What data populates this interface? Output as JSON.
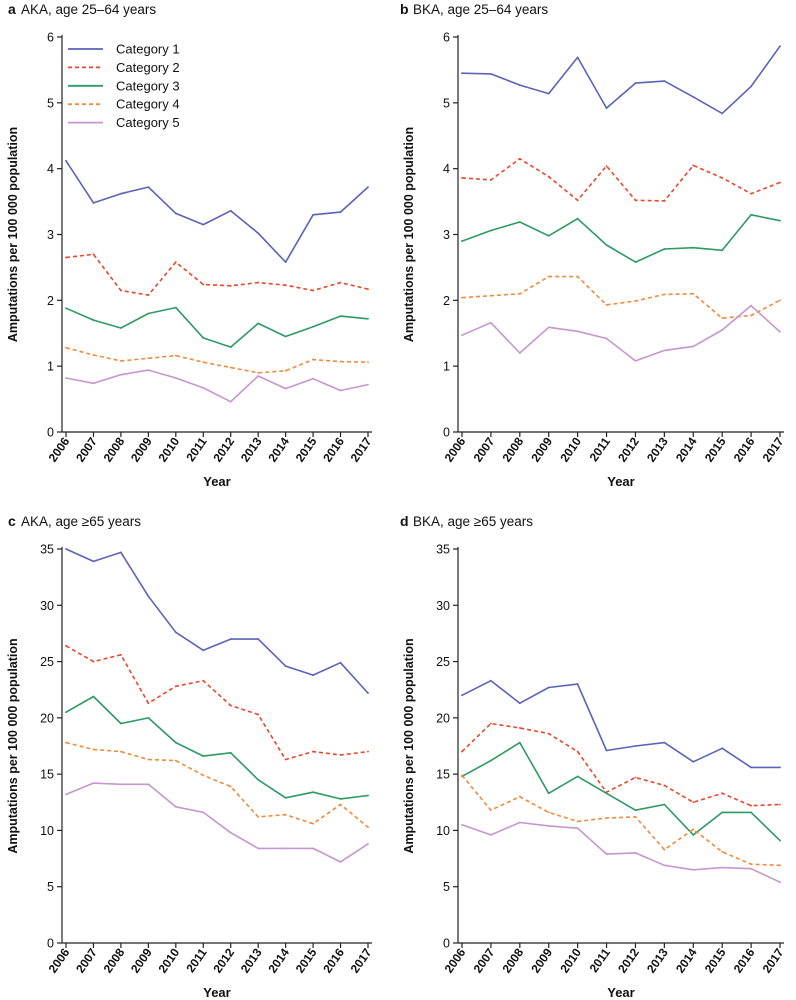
{
  "colors": {
    "cat1": "#5a63b8",
    "cat2": "#e8472b",
    "cat3": "#2e9a63",
    "cat4": "#f08a3e",
    "cat5": "#c795cf"
  },
  "legend": [
    {
      "name": "Category 1",
      "color": "#5a63b8",
      "dashed": false
    },
    {
      "name": "Category 2",
      "color": "#e8472b",
      "dashed": true
    },
    {
      "name": "Category 3",
      "color": "#2e9a63",
      "dashed": false
    },
    {
      "name": "Category 4",
      "color": "#f08a3e",
      "dashed": true
    },
    {
      "name": "Category 5",
      "color": "#c795cf",
      "dashed": false
    }
  ],
  "chart_data": [
    {
      "type": "line",
      "panel_letter": "a",
      "title": "AKA, age 25–64 years",
      "xlabel": "Year",
      "ylabel": "Amputations per 100 000 population",
      "x": [
        "2006",
        "2007",
        "2008",
        "2009",
        "2010",
        "2011",
        "2012",
        "2013",
        "2014",
        "2015",
        "2016",
        "2017"
      ],
      "ylim": [
        0,
        6
      ],
      "yticks": [
        0,
        1,
        2,
        3,
        4,
        5,
        6
      ],
      "grid": false,
      "legend_position": "top-left",
      "series": [
        {
          "name": "Category 1",
          "values": [
            4.12,
            3.48,
            3.62,
            3.72,
            3.32,
            3.15,
            3.36,
            3.02,
            2.58,
            3.3,
            3.34,
            3.72
          ]
        },
        {
          "name": "Category 2",
          "values": [
            2.65,
            2.7,
            2.15,
            2.08,
            2.58,
            2.24,
            2.22,
            2.27,
            2.23,
            2.15,
            2.27,
            2.17
          ]
        },
        {
          "name": "Category 3",
          "values": [
            1.88,
            1.7,
            1.58,
            1.8,
            1.89,
            1.43,
            1.29,
            1.65,
            1.45,
            1.6,
            1.76,
            1.72
          ]
        },
        {
          "name": "Category 4",
          "values": [
            1.28,
            1.17,
            1.08,
            1.12,
            1.16,
            1.06,
            0.98,
            0.9,
            0.93,
            1.1,
            1.07,
            1.06
          ]
        },
        {
          "name": "Category 5",
          "values": [
            0.82,
            0.74,
            0.87,
            0.94,
            0.82,
            0.67,
            0.46,
            0.85,
            0.66,
            0.81,
            0.63,
            0.72
          ]
        }
      ]
    },
    {
      "type": "line",
      "panel_letter": "b",
      "title": "BKA, age 25–64 years",
      "xlabel": "Year",
      "ylabel": "Amputations per 100 000 population",
      "x": [
        "2006",
        "2007",
        "2008",
        "2009",
        "2010",
        "2011",
        "2012",
        "2013",
        "2014",
        "2015",
        "2016",
        "2017"
      ],
      "ylim": [
        0,
        6
      ],
      "yticks": [
        0,
        1,
        2,
        3,
        4,
        5,
        6
      ],
      "grid": false,
      "series": [
        {
          "name": "Category 1",
          "values": [
            5.45,
            5.44,
            5.27,
            5.14,
            5.69,
            4.92,
            5.3,
            5.33,
            5.09,
            4.84,
            5.25,
            5.86
          ]
        },
        {
          "name": "Category 2",
          "values": [
            3.86,
            3.83,
            4.15,
            3.88,
            3.52,
            4.04,
            3.52,
            3.51,
            4.05,
            3.86,
            3.62,
            3.79
          ]
        },
        {
          "name": "Category 3",
          "values": [
            2.9,
            3.06,
            3.19,
            2.98,
            3.24,
            2.84,
            2.58,
            2.78,
            2.8,
            2.76,
            3.3,
            3.21
          ]
        },
        {
          "name": "Category 4",
          "values": [
            2.04,
            2.07,
            2.1,
            2.36,
            2.36,
            1.93,
            1.99,
            2.09,
            2.1,
            1.73,
            1.77,
            2.0
          ]
        },
        {
          "name": "Category 5",
          "values": [
            1.47,
            1.66,
            1.2,
            1.59,
            1.53,
            1.42,
            1.08,
            1.24,
            1.3,
            1.55,
            1.92,
            1.52
          ]
        }
      ]
    },
    {
      "type": "line",
      "panel_letter": "c",
      "title": "AKA, age ≥65 years",
      "xlabel": "Year",
      "ylabel": "Amputations per 100 000 population",
      "x": [
        "2006",
        "2007",
        "2008",
        "2009",
        "2010",
        "2011",
        "2012",
        "2013",
        "2014",
        "2015",
        "2016",
        "2017"
      ],
      "ylim": [
        0,
        35
      ],
      "yticks": [
        0,
        5,
        10,
        15,
        20,
        25,
        30,
        35
      ],
      "grid": false,
      "series": [
        {
          "name": "Category 1",
          "values": [
            35.0,
            33.9,
            34.7,
            30.8,
            27.6,
            26.0,
            27.0,
            27.0,
            24.6,
            23.8,
            24.9,
            22.2
          ]
        },
        {
          "name": "Category 2",
          "values": [
            26.4,
            25.0,
            25.6,
            21.3,
            22.8,
            23.3,
            21.1,
            20.3,
            16.3,
            17.0,
            16.7,
            17.0
          ]
        },
        {
          "name": "Category 3",
          "values": [
            20.5,
            21.9,
            19.5,
            20.0,
            17.8,
            16.6,
            16.9,
            14.5,
            12.9,
            13.4,
            12.8,
            13.1
          ]
        },
        {
          "name": "Category 4",
          "values": [
            17.8,
            17.2,
            17.0,
            16.3,
            16.2,
            14.9,
            13.9,
            11.2,
            11.4,
            10.6,
            12.3,
            10.3
          ]
        },
        {
          "name": "Category 5",
          "values": [
            13.2,
            14.2,
            14.1,
            14.1,
            12.1,
            11.6,
            9.8,
            8.4,
            8.4,
            8.4,
            7.2,
            8.8
          ]
        }
      ]
    },
    {
      "type": "line",
      "panel_letter": "d",
      "title": "BKA, age ≥65 years",
      "xlabel": "Year",
      "ylabel": "Amputations per 100 000 population",
      "x": [
        "2006",
        "2007",
        "2008",
        "2009",
        "2010",
        "2011",
        "2012",
        "2013",
        "2014",
        "2015",
        "2016",
        "2017"
      ],
      "ylim": [
        0,
        35
      ],
      "yticks": [
        0,
        5,
        10,
        15,
        20,
        25,
        30,
        35
      ],
      "grid": false,
      "series": [
        {
          "name": "Category 1",
          "values": [
            22.0,
            23.3,
            21.3,
            22.7,
            23.0,
            17.1,
            17.5,
            17.8,
            16.1,
            17.3,
            15.6,
            15.6
          ]
        },
        {
          "name": "Category 2",
          "values": [
            17.0,
            19.5,
            19.1,
            18.6,
            17.0,
            13.4,
            14.7,
            14.0,
            12.5,
            13.3,
            12.2,
            12.3
          ]
        },
        {
          "name": "Category 3",
          "values": [
            14.8,
            16.2,
            17.8,
            13.3,
            14.8,
            13.3,
            11.8,
            12.3,
            9.6,
            11.6,
            11.6,
            9.1
          ]
        },
        {
          "name": "Category 4",
          "values": [
            14.9,
            11.8,
            13.0,
            11.6,
            10.8,
            11.1,
            11.2,
            8.3,
            10.1,
            8.1,
            7.0,
            6.9
          ]
        },
        {
          "name": "Category 5",
          "values": [
            10.5,
            9.6,
            10.7,
            10.4,
            10.2,
            7.9,
            8.0,
            6.9,
            6.5,
            6.7,
            6.6,
            5.4
          ]
        }
      ]
    }
  ]
}
